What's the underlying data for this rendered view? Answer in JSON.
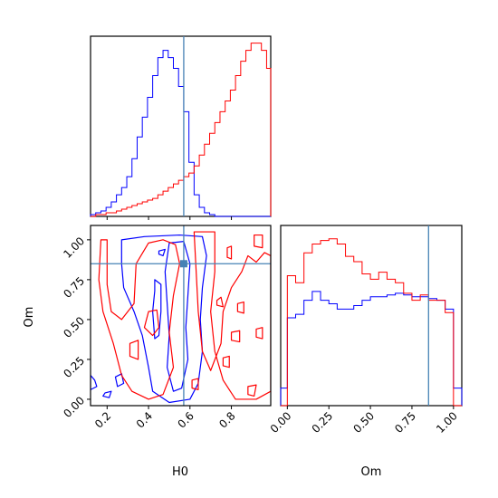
{
  "chart_data": [
    {
      "type": "histogram",
      "panel": "H0-marginal",
      "x_range": [
        0.12,
        0.99
      ],
      "truth": 0.57,
      "bin_edges": [
        0.12,
        0.145,
        0.17,
        0.195,
        0.22,
        0.245,
        0.27,
        0.295,
        0.32,
        0.345,
        0.37,
        0.395,
        0.42,
        0.445,
        0.47,
        0.495,
        0.52,
        0.545,
        0.57,
        0.595,
        0.62,
        0.645,
        0.67,
        0.695,
        0.72,
        0.745,
        0.77,
        0.795,
        0.82,
        0.845,
        0.87,
        0.895,
        0.92,
        0.945,
        0.97,
        0.99
      ],
      "series": [
        {
          "color": "#0000ff",
          "values": [
            1,
            2,
            3,
            5,
            8,
            12,
            16,
            22,
            32,
            44,
            55,
            66,
            78,
            88,
            92,
            88,
            82,
            72,
            58,
            30,
            12,
            5,
            2,
            1,
            0,
            0,
            0,
            0,
            0,
            0,
            0,
            0,
            0,
            0,
            0
          ]
        },
        {
          "color": "#ff0000",
          "values": [
            0,
            1,
            1,
            2,
            2,
            3,
            4,
            5,
            6,
            7,
            8,
            9,
            10,
            12,
            14,
            16,
            18,
            20,
            22,
            24,
            28,
            34,
            40,
            46,
            52,
            58,
            64,
            70,
            78,
            86,
            92,
            96,
            96,
            92,
            82
          ]
        }
      ]
    },
    {
      "type": "contour",
      "panel": "H0-Om-2d",
      "xlabel": "H0",
      "ylabel": "Om",
      "x_range": [
        0.12,
        0.99
      ],
      "y_range": [
        -0.04,
        1.09
      ],
      "x_ticks": [
        "0.2",
        "0.4",
        "0.6",
        "0.8"
      ],
      "y_ticks": [
        "0.00",
        "0.25",
        "0.50",
        "0.75",
        "1.00"
      ],
      "truth": [
        0.57,
        0.85
      ],
      "series": [
        {
          "color": "#0000ff",
          "contours": [
            [
              [
                0.27,
                1.0
              ],
              [
                0.38,
                1.02
              ],
              [
                0.55,
                1.03
              ],
              [
                0.66,
                1.02
              ],
              [
                0.68,
                0.9
              ],
              [
                0.66,
                0.7
              ],
              [
                0.65,
                0.5
              ],
              [
                0.66,
                0.3
              ],
              [
                0.64,
                0.1
              ],
              [
                0.6,
                0.0
              ],
              [
                0.5,
                -0.02
              ],
              [
                0.42,
                0.05
              ],
              [
                0.4,
                0.2
              ],
              [
                0.37,
                0.4
              ],
              [
                0.33,
                0.55
              ],
              [
                0.28,
                0.7
              ],
              [
                0.27,
                0.85
              ]
            ],
            [
              [
                0.5,
                0.98
              ],
              [
                0.57,
                0.99
              ],
              [
                0.6,
                0.85
              ],
              [
                0.59,
                0.65
              ],
              [
                0.58,
                0.45
              ],
              [
                0.59,
                0.25
              ],
              [
                0.56,
                0.07
              ],
              [
                0.52,
                0.05
              ],
              [
                0.49,
                0.2
              ],
              [
                0.5,
                0.4
              ],
              [
                0.49,
                0.6
              ],
              [
                0.48,
                0.8
              ]
            ],
            [
              [
                0.43,
                0.75
              ],
              [
                0.46,
                0.72
              ],
              [
                0.46,
                0.55
              ],
              [
                0.45,
                0.4
              ],
              [
                0.43,
                0.38
              ],
              [
                0.42,
                0.55
              ],
              [
                0.43,
                0.68
              ]
            ],
            [
              [
                0.45,
                0.93
              ],
              [
                0.48,
                0.94
              ],
              [
                0.47,
                0.9
              ],
              [
                0.45,
                0.91
              ]
            ],
            [
              [
                0.12,
                0.15
              ],
              [
                0.14,
                0.12
              ],
              [
                0.15,
                0.08
              ],
              [
                0.12,
                0.06
              ]
            ],
            [
              [
                0.19,
                0.04
              ],
              [
                0.22,
                0.05
              ],
              [
                0.21,
                0.01
              ],
              [
                0.18,
                0.02
              ]
            ],
            [
              [
                0.24,
                0.14
              ],
              [
                0.27,
                0.16
              ],
              [
                0.28,
                0.1
              ],
              [
                0.25,
                0.08
              ]
            ]
          ]
        },
        {
          "color": "#ff0000",
          "contours": [
            [
              [
                0.17,
                1.0
              ],
              [
                0.2,
                1.0
              ],
              [
                0.2,
                0.72
              ],
              [
                0.22,
                0.55
              ],
              [
                0.27,
                0.5
              ],
              [
                0.33,
                0.6
              ],
              [
                0.34,
                0.85
              ],
              [
                0.4,
                0.98
              ],
              [
                0.47,
                1.0
              ],
              [
                0.53,
                0.97
              ],
              [
                0.55,
                0.85
              ],
              [
                0.52,
                0.65
              ],
              [
                0.5,
                0.42
              ],
              [
                0.52,
                0.2
              ],
              [
                0.47,
                0.03
              ],
              [
                0.4,
                0.0
              ],
              [
                0.32,
                0.05
              ],
              [
                0.27,
                0.15
              ],
              [
                0.23,
                0.35
              ],
              [
                0.18,
                0.55
              ],
              [
                0.16,
                0.75
              ]
            ],
            [
              [
                0.62,
                1.05
              ],
              [
                0.72,
                1.05
              ],
              [
                0.72,
                0.8
              ],
              [
                0.7,
                0.55
              ],
              [
                0.72,
                0.3
              ],
              [
                0.76,
                0.12
              ],
              [
                0.82,
                0.0
              ],
              [
                0.92,
                0.0
              ],
              [
                0.99,
                0.05
              ],
              [
                0.99,
                0.9
              ],
              [
                0.96,
                0.92
              ],
              [
                0.92,
                0.86
              ],
              [
                0.88,
                0.9
              ],
              [
                0.85,
                0.8
              ],
              [
                0.8,
                0.7
              ],
              [
                0.76,
                0.55
              ],
              [
                0.75,
                0.35
              ],
              [
                0.7,
                0.18
              ],
              [
                0.66,
                0.3
              ],
              [
                0.64,
                0.55
              ],
              [
                0.63,
                0.8
              ]
            ],
            [
              [
                0.4,
                0.55
              ],
              [
                0.44,
                0.56
              ],
              [
                0.45,
                0.45
              ],
              [
                0.42,
                0.4
              ],
              [
                0.38,
                0.45
              ]
            ],
            [
              [
                0.31,
                0.35
              ],
              [
                0.35,
                0.37
              ],
              [
                0.35,
                0.25
              ],
              [
                0.31,
                0.27
              ]
            ],
            [
              [
                0.78,
                0.95
              ],
              [
                0.8,
                0.96
              ],
              [
                0.8,
                0.88
              ],
              [
                0.78,
                0.89
              ]
            ],
            [
              [
                0.91,
                1.03
              ],
              [
                0.95,
                1.03
              ],
              [
                0.95,
                0.95
              ],
              [
                0.91,
                0.96
              ]
            ],
            [
              [
                0.83,
                0.6
              ],
              [
                0.86,
                0.61
              ],
              [
                0.86,
                0.54
              ],
              [
                0.83,
                0.55
              ]
            ],
            [
              [
                0.92,
                0.44
              ],
              [
                0.95,
                0.45
              ],
              [
                0.95,
                0.38
              ],
              [
                0.92,
                0.39
              ]
            ],
            [
              [
                0.8,
                0.42
              ],
              [
                0.84,
                0.43
              ],
              [
                0.84,
                0.36
              ],
              [
                0.8,
                0.37
              ]
            ],
            [
              [
                0.76,
                0.26
              ],
              [
                0.79,
                0.27
              ],
              [
                0.79,
                0.2
              ],
              [
                0.76,
                0.21
              ]
            ],
            [
              [
                0.88,
                0.08
              ],
              [
                0.92,
                0.09
              ],
              [
                0.91,
                0.02
              ],
              [
                0.88,
                0.03
              ]
            ],
            [
              [
                0.61,
                0.12
              ],
              [
                0.64,
                0.13
              ],
              [
                0.64,
                0.06
              ],
              [
                0.61,
                0.07
              ]
            ],
            [
              [
                0.73,
                0.62
              ],
              [
                0.75,
                0.64
              ],
              [
                0.76,
                0.58
              ],
              [
                0.73,
                0.59
              ]
            ]
          ]
        }
      ]
    },
    {
      "type": "histogram",
      "panel": "Om-marginal",
      "xlabel": "Om",
      "x_range": [
        -0.04,
        1.05
      ],
      "x_ticks": [
        "0.00",
        "0.25",
        "0.50",
        "0.75",
        "1.00"
      ],
      "truth": 0.85,
      "bin_edges": [
        -0.04,
        0.0,
        0.05,
        0.1,
        0.15,
        0.2,
        0.25,
        0.3,
        0.35,
        0.4,
        0.45,
        0.5,
        0.55,
        0.6,
        0.65,
        0.7,
        0.75,
        0.8,
        0.85,
        0.9,
        0.95,
        1.0,
        1.05
      ],
      "series": [
        {
          "color": "#0000ff",
          "values": [
            10,
            50,
            52,
            60,
            65,
            60,
            58,
            55,
            55,
            57,
            60,
            62,
            62,
            63,
            64,
            63,
            62,
            62,
            61,
            60,
            55,
            10
          ]
        },
        {
          "color": "#ff0000",
          "values": [
            0,
            74,
            70,
            87,
            92,
            94,
            95,
            92,
            85,
            82,
            75,
            72,
            76,
            72,
            70,
            64,
            60,
            63,
            60,
            60,
            53,
            0
          ]
        }
      ]
    }
  ]
}
